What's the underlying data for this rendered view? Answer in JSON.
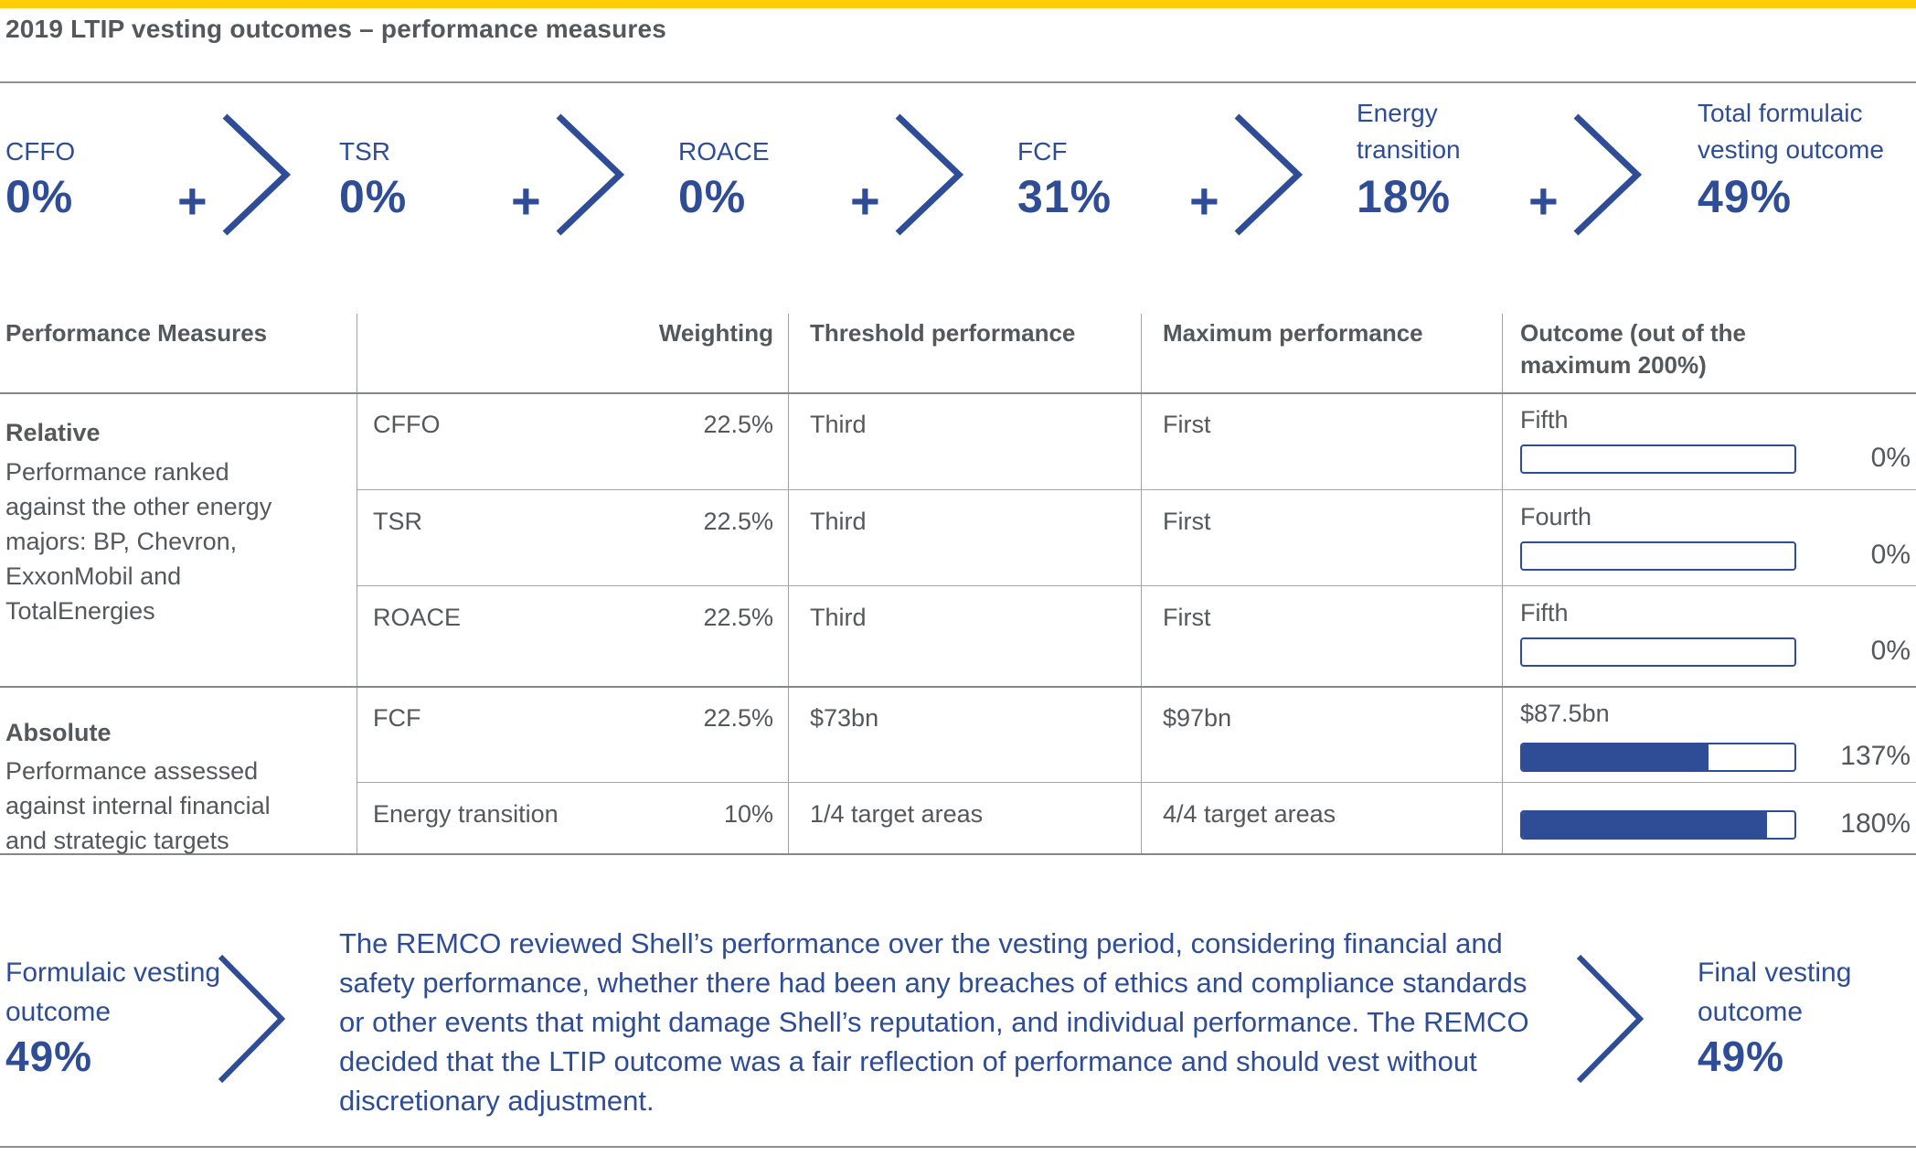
{
  "colors": {
    "accent_yellow": "#FBCE07",
    "brand_blue": "#2E4D96",
    "text_gray": "#54585B"
  },
  "header": {
    "title": "2019 LTIP vesting outcomes – performance measures"
  },
  "flow": {
    "plus_symbol": "+",
    "items": [
      {
        "label": "CFFO",
        "value": "0%"
      },
      {
        "label": "TSR",
        "value": "0%"
      },
      {
        "label": "ROACE",
        "value": "0%"
      },
      {
        "label": "FCF",
        "value": "31%"
      },
      {
        "label": "Energy transition",
        "value": "18%"
      },
      {
        "label": "Total formulaic vesting outcome",
        "value": "49%"
      }
    ]
  },
  "table": {
    "columns": [
      "Performance Measures",
      "Weighting",
      "Threshold performance",
      "Maximum performance",
      "Outcome (out of the maximum 200%)"
    ],
    "groups": [
      {
        "name": "Relative",
        "description": "Performance ranked against the other energy majors: BP, Chevron, ExxonMobil and TotalEnergies"
      },
      {
        "name": "Absolute",
        "description": "Performance assessed against internal financial and strategic targets"
      }
    ],
    "rows": [
      {
        "measure": "CFFO",
        "weighting": "22.5%",
        "threshold": "Third",
        "maximum": "First",
        "outcome_label": "Fifth",
        "outcome_value": "0%",
        "outcome_pct_of_200": 0
      },
      {
        "measure": "TSR",
        "weighting": "22.5%",
        "threshold": "Third",
        "maximum": "First",
        "outcome_label": "Fourth",
        "outcome_value": "0%",
        "outcome_pct_of_200": 0
      },
      {
        "measure": "ROACE",
        "weighting": "22.5%",
        "threshold": "Third",
        "maximum": "First",
        "outcome_label": "Fifth",
        "outcome_value": "0%",
        "outcome_pct_of_200": 0
      },
      {
        "measure": "FCF",
        "weighting": "22.5%",
        "threshold": "$73bn",
        "maximum": "$97bn",
        "outcome_label": "$87.5bn",
        "outcome_value": "137%",
        "outcome_pct_of_200": 68.5
      },
      {
        "measure": "Energy transition",
        "weighting": "10%",
        "threshold": "1/4 target areas",
        "maximum": "4/4 target areas",
        "outcome_label": "",
        "outcome_value": "180%",
        "outcome_pct_of_200": 90
      }
    ]
  },
  "footer": {
    "formulaic_label": "Formulaic vesting outcome",
    "formulaic_value": "49%",
    "remco_text": "The REMCO reviewed Shell’s performance over the vesting period, considering financial and safety performance, whether there had been any breaches of ethics and compliance standards or other events that might damage Shell’s reputation, and individual performance. The REMCO decided that the LTIP outcome was a fair reflection of performance and should vest without discretionary adjustment.",
    "final_label": "Final vesting outcome",
    "final_value": "49%"
  }
}
